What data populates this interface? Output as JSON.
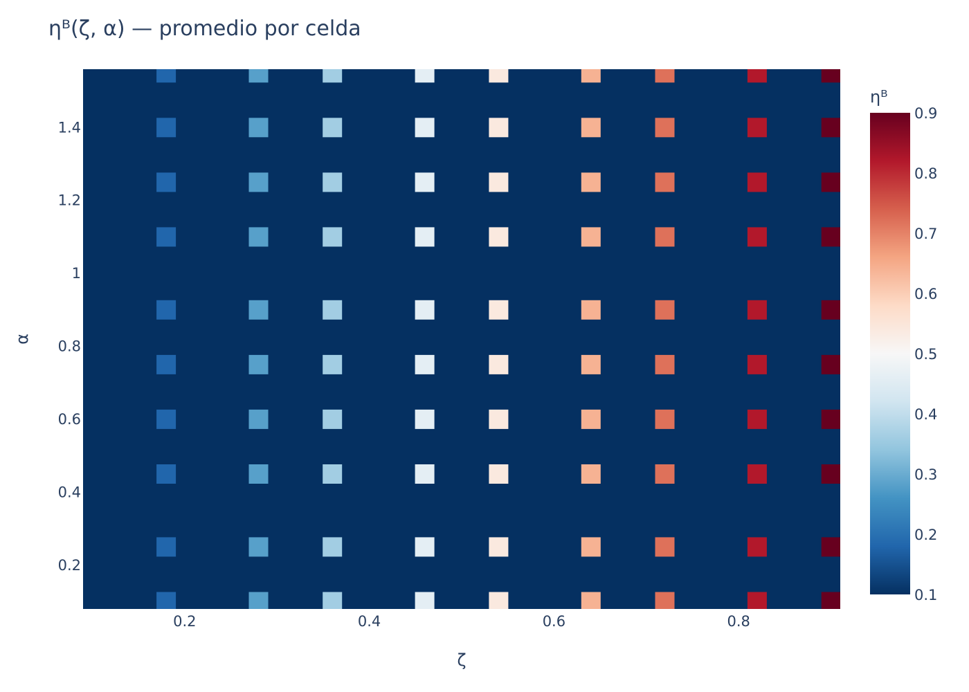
{
  "chart_data": {
    "type": "heatmap",
    "title": "ηᴮ(ζ, α) — promedio por celda",
    "xlabel": "ζ",
    "ylabel": "α",
    "colorbar_title": "ηᴮ",
    "colorscale": "RdBu_r",
    "zmin": 0.1,
    "zmax": 0.9,
    "background_value": 0.1,
    "xlim": [
      0.09,
      0.91
    ],
    "ylim": [
      0.08,
      1.56
    ],
    "x_ticks": [
      {
        "value": 0.2,
        "label": "0.2"
      },
      {
        "value": 0.4,
        "label": "0.4"
      },
      {
        "value": 0.6,
        "label": "0.6"
      },
      {
        "value": 0.8,
        "label": "0.8"
      }
    ],
    "y_ticks": [
      {
        "value": 0.2,
        "label": "0.2"
      },
      {
        "value": 0.4,
        "label": "0.4"
      },
      {
        "value": 0.6,
        "label": "0.6"
      },
      {
        "value": 0.8,
        "label": "0.8"
      },
      {
        "value": 1.0,
        "label": "1"
      },
      {
        "value": 1.2,
        "label": "1.2"
      },
      {
        "value": 1.4,
        "label": "1.4"
      }
    ],
    "colorbar_ticks": [
      {
        "value": 0.1,
        "label": "0.1"
      },
      {
        "value": 0.2,
        "label": "0.2"
      },
      {
        "value": 0.3,
        "label": "0.3"
      },
      {
        "value": 0.4,
        "label": "0.4"
      },
      {
        "value": 0.5,
        "label": "0.5"
      },
      {
        "value": 0.6,
        "label": "0.6"
      },
      {
        "value": 0.7,
        "label": "0.7"
      },
      {
        "value": 0.8,
        "label": "0.8"
      },
      {
        "value": 0.9,
        "label": "0.9"
      }
    ],
    "x": [
      0.18,
      0.28,
      0.36,
      0.46,
      0.54,
      0.64,
      0.72,
      0.82,
      0.9
    ],
    "y": [
      0.1,
      0.25,
      0.45,
      0.6,
      0.75,
      0.9,
      1.1,
      1.25,
      1.4,
      1.55
    ],
    "z": [
      [
        0.18,
        0.28,
        0.36,
        0.46,
        0.54,
        0.64,
        0.72,
        0.82,
        0.9
      ],
      [
        0.18,
        0.28,
        0.36,
        0.46,
        0.54,
        0.64,
        0.72,
        0.82,
        0.9
      ],
      [
        0.18,
        0.28,
        0.36,
        0.46,
        0.54,
        0.64,
        0.72,
        0.82,
        0.9
      ],
      [
        0.18,
        0.28,
        0.36,
        0.46,
        0.54,
        0.64,
        0.72,
        0.82,
        0.9
      ],
      [
        0.18,
        0.28,
        0.36,
        0.46,
        0.54,
        0.64,
        0.72,
        0.82,
        0.9
      ],
      [
        0.18,
        0.28,
        0.36,
        0.46,
        0.54,
        0.64,
        0.72,
        0.82,
        0.9
      ],
      [
        0.18,
        0.28,
        0.36,
        0.46,
        0.54,
        0.64,
        0.72,
        0.82,
        0.9
      ],
      [
        0.18,
        0.28,
        0.36,
        0.46,
        0.54,
        0.64,
        0.72,
        0.82,
        0.9
      ],
      [
        0.18,
        0.28,
        0.36,
        0.46,
        0.54,
        0.64,
        0.72,
        0.82,
        0.9
      ],
      [
        0.18,
        0.28,
        0.36,
        0.46,
        0.54,
        0.64,
        0.72,
        0.82,
        0.9
      ]
    ]
  }
}
